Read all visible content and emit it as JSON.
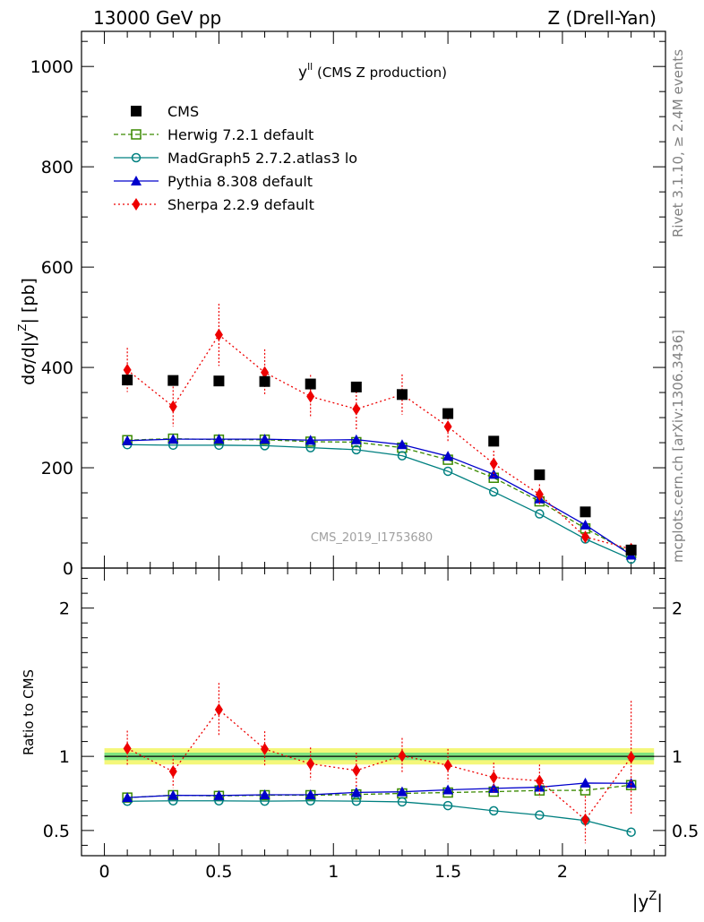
{
  "header": {
    "left": "13000 GeV pp",
    "right": "Z (Drell-Yan)"
  },
  "side_labels": {
    "rivet": "Rivet 3.1.10, ≥ 2.4M events",
    "mcplots": "mcplots.cern.ch [arXiv:1306.3436]"
  },
  "colors": {
    "cms": "#000000",
    "herwig": "#3a8a00",
    "madgraph": "#008080",
    "pythia": "#0000cc",
    "sherpa": "#ee0000",
    "band_inner": "#7fe37f",
    "band_outer": "#f4f77a"
  },
  "chart_data": [
    {
      "type": "scatter",
      "panel": "main",
      "title_main": "y",
      "title_sup": "ll",
      "title_rest": " (CMS Z production)",
      "watermark": "CMS_2019_I1753680",
      "ylabel": "dσ/d|y",
      "ylabel_sup": "Z",
      "ylabel_rest": "| [pb]",
      "xlim": [
        -0.1,
        2.45
      ],
      "ylim": [
        0,
        1070
      ],
      "y_ticks": [
        0,
        200,
        400,
        600,
        800,
        1000
      ],
      "legend_position": "top-left",
      "x": [
        0.1,
        0.3,
        0.5,
        0.7,
        0.9,
        1.1,
        1.3,
        1.5,
        1.7,
        1.9,
        2.1,
        2.3
      ],
      "series": [
        {
          "key": "cms",
          "name": "CMS",
          "marker": "square-filled",
          "line": "none",
          "values": [
            375,
            374,
            373,
            372,
            367,
            361,
            346,
            308,
            253,
            186,
            112,
            36
          ]
        },
        {
          "key": "herwig",
          "name": "Herwig 7.2.1 default",
          "marker": "square-open",
          "line": "dashed",
          "values": [
            255,
            258,
            256,
            256,
            252,
            251,
            240,
            216,
            180,
            133,
            79,
            30
          ]
        },
        {
          "key": "madgraph",
          "name": "MadGraph5 2.7.2.atlas3 lo",
          "marker": "circle-open",
          "line": "solid",
          "values": [
            246,
            245,
            245,
            244,
            240,
            236,
            224,
            193,
            152,
            108,
            58,
            18
          ]
        },
        {
          "key": "pythia",
          "name": "Pythia 8.308 default",
          "marker": "triangle-filled",
          "line": "solid",
          "values": [
            254,
            257,
            257,
            257,
            255,
            256,
            246,
            223,
            187,
            138,
            86,
            26
          ]
        },
        {
          "key": "sherpa",
          "name": "Sherpa 2.2.9 default",
          "marker": "diamond-filled",
          "line": "dotted",
          "values": [
            395,
            322,
            465,
            390,
            342,
            317,
            346,
            282,
            208,
            147,
            62,
            38
          ],
          "err": [
            44,
            40,
            62,
            46,
            43,
            42,
            40,
            32,
            26,
            20,
            12,
            9
          ]
        }
      ]
    },
    {
      "type": "scatter",
      "panel": "ratio",
      "ylabel": "Ratio to CMS",
      "xlabel": "|y",
      "xlabel_sup": "Z",
      "xlabel_rest": "|",
      "xlim": [
        -0.1,
        2.45
      ],
      "ylim": [
        0.33,
        2.27
      ],
      "x_ticks": [
        0,
        0.5,
        1,
        1.5,
        2
      ],
      "x_tick_labels": [
        "0",
        "0.5",
        "1",
        "1.5",
        "2"
      ],
      "y_ticks": [
        0.5,
        1,
        2
      ],
      "y_tick_labels": [
        "0.5",
        "1",
        "2"
      ],
      "band": {
        "inner": 0.025,
        "outer": 0.055
      },
      "x": [
        0.1,
        0.3,
        0.5,
        0.7,
        0.9,
        1.1,
        1.3,
        1.5,
        1.7,
        1.9,
        2.1,
        2.3
      ],
      "series": [
        {
          "key": "herwig",
          "values": [
            0.722,
            0.738,
            0.733,
            0.738,
            0.738,
            0.743,
            0.75,
            0.756,
            0.762,
            0.77,
            0.771,
            0.806
          ]
        },
        {
          "key": "madgraph",
          "values": [
            0.697,
            0.7,
            0.7,
            0.698,
            0.7,
            0.698,
            0.693,
            0.668,
            0.633,
            0.604,
            0.567,
            0.489
          ]
        },
        {
          "key": "pythia",
          "values": [
            0.722,
            0.737,
            0.736,
            0.741,
            0.741,
            0.757,
            0.761,
            0.774,
            0.784,
            0.792,
            0.82,
            0.818
          ]
        },
        {
          "key": "sherpa",
          "values": [
            1.053,
            0.898,
            1.315,
            1.049,
            0.95,
            0.905,
            1.004,
            0.94,
            0.858,
            0.835,
            0.573,
            0.994
          ],
          "err": [
            0.12,
            0.11,
            0.18,
            0.12,
            0.11,
            0.12,
            0.12,
            0.11,
            0.1,
            0.11,
            0.16,
            0.38
          ]
        }
      ]
    }
  ]
}
